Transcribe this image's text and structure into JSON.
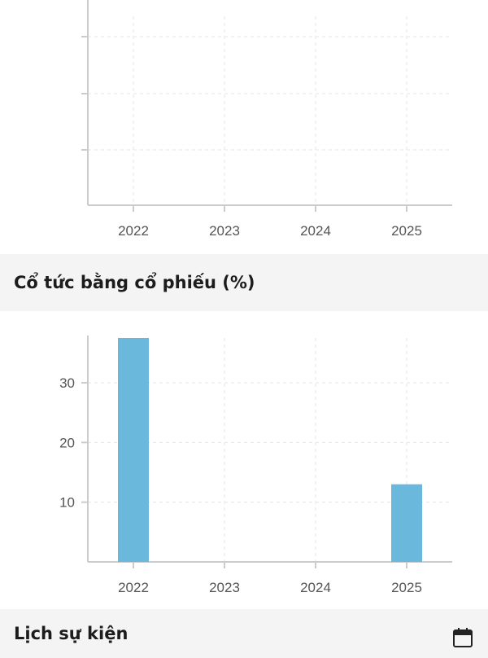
{
  "sections": {
    "dividend_title": "Cổ tức bằng cổ phiếu (%)",
    "events_title": "Lịch sự kiện",
    "events_icon": "calendar-icon"
  },
  "colors": {
    "bar": "#6ab8dc",
    "axis": "#cccccc",
    "grid": "#e6e6e6",
    "header_bg": "#f4f4f4"
  },
  "chart_data": [
    {
      "type": "bar",
      "categories": [
        "2022",
        "2023",
        "2024",
        "2025"
      ],
      "values": [
        null,
        null,
        null,
        null
      ],
      "yticks": [],
      "grid": true
    },
    {
      "type": "bar",
      "categories": [
        "2022",
        "2023",
        "2024",
        "2025"
      ],
      "values": [
        37.5,
        0,
        0,
        13
      ],
      "yticks": [
        10,
        20,
        30
      ],
      "ylim": [
        0,
        37.5
      ],
      "grid": true
    }
  ]
}
